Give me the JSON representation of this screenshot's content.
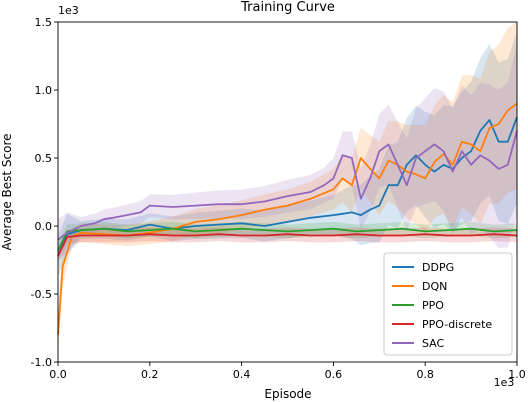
{
  "chart_data": {
    "type": "line",
    "title": "Training Curve",
    "xlabel": "Episode",
    "ylabel": "Average Best Score",
    "x_multiplier_label": "1e3",
    "y_multiplier_label": "1e3",
    "xlim": [
      0,
      1.0
    ],
    "ylim": [
      -1.0,
      1.5
    ],
    "x_ticks": [
      0.0,
      0.2,
      0.4,
      0.6,
      0.8,
      1.0
    ],
    "x_tick_labels": [
      "0.0",
      "0.2",
      "0.4",
      "0.6",
      "0.8",
      "1.0"
    ],
    "y_ticks": [
      -1.0,
      -0.5,
      0.0,
      0.5,
      1.0,
      1.5
    ],
    "y_tick_labels": [
      "-1.0",
      "-0.5",
      "0.0",
      "0.5",
      "1.0",
      "1.5"
    ],
    "grid": false,
    "legend_position": "lower-right",
    "series": [
      {
        "name": "DDPG",
        "color": "#1f77b4",
        "x": [
          0.0,
          0.02,
          0.05,
          0.1,
          0.15,
          0.2,
          0.25,
          0.3,
          0.35,
          0.4,
          0.45,
          0.5,
          0.55,
          0.6,
          0.62,
          0.64,
          0.66,
          0.68,
          0.7,
          0.72,
          0.74,
          0.76,
          0.78,
          0.8,
          0.82,
          0.84,
          0.86,
          0.88,
          0.9,
          0.92,
          0.94,
          0.96,
          0.98,
          1.0
        ],
        "y": [
          -0.22,
          -0.06,
          -0.03,
          -0.02,
          -0.03,
          0.01,
          -0.02,
          0.0,
          0.01,
          0.02,
          0.0,
          0.03,
          0.06,
          0.08,
          0.09,
          0.1,
          0.08,
          0.12,
          0.15,
          0.3,
          0.3,
          0.45,
          0.52,
          0.45,
          0.4,
          0.45,
          0.42,
          0.5,
          0.55,
          0.7,
          0.78,
          0.62,
          0.62,
          0.8
        ]
      },
      {
        "name": "DQN",
        "color": "#ff7f0e",
        "x": [
          0.0,
          0.01,
          0.03,
          0.05,
          0.1,
          0.15,
          0.2,
          0.25,
          0.3,
          0.35,
          0.4,
          0.45,
          0.5,
          0.55,
          0.6,
          0.62,
          0.64,
          0.66,
          0.68,
          0.7,
          0.72,
          0.74,
          0.76,
          0.78,
          0.8,
          0.82,
          0.84,
          0.86,
          0.88,
          0.9,
          0.92,
          0.94,
          0.96,
          0.98,
          1.0
        ],
        "y": [
          -0.8,
          -0.3,
          -0.08,
          -0.05,
          -0.06,
          -0.07,
          -0.05,
          -0.02,
          0.03,
          0.05,
          0.08,
          0.12,
          0.15,
          0.2,
          0.27,
          0.35,
          0.3,
          0.5,
          0.42,
          0.35,
          0.48,
          0.45,
          0.4,
          0.38,
          0.35,
          0.47,
          0.53,
          0.45,
          0.62,
          0.6,
          0.55,
          0.72,
          0.75,
          0.85,
          0.9
        ]
      },
      {
        "name": "PPO",
        "color": "#2ca02c",
        "x": [
          0.0,
          0.02,
          0.05,
          0.1,
          0.15,
          0.2,
          0.25,
          0.3,
          0.35,
          0.4,
          0.45,
          0.5,
          0.55,
          0.6,
          0.65,
          0.7,
          0.75,
          0.8,
          0.85,
          0.9,
          0.95,
          1.0
        ],
        "y": [
          -0.18,
          -0.04,
          -0.03,
          -0.02,
          -0.04,
          -0.03,
          -0.02,
          -0.04,
          -0.03,
          -0.02,
          -0.03,
          -0.04,
          -0.03,
          -0.02,
          -0.04,
          -0.03,
          -0.02,
          -0.04,
          -0.03,
          -0.02,
          -0.04,
          -0.03
        ]
      },
      {
        "name": "PPO-discrete",
        "color": "#d62728",
        "x": [
          0.0,
          0.02,
          0.05,
          0.1,
          0.15,
          0.2,
          0.25,
          0.3,
          0.35,
          0.4,
          0.45,
          0.5,
          0.55,
          0.6,
          0.65,
          0.7,
          0.75,
          0.8,
          0.85,
          0.9,
          0.95,
          1.0
        ],
        "y": [
          -0.22,
          -0.08,
          -0.07,
          -0.07,
          -0.07,
          -0.06,
          -0.07,
          -0.07,
          -0.06,
          -0.07,
          -0.07,
          -0.06,
          -0.07,
          -0.07,
          -0.06,
          -0.07,
          -0.07,
          -0.06,
          -0.07,
          -0.07,
          -0.06,
          -0.07
        ]
      },
      {
        "name": "SAC",
        "color": "#9467bd",
        "x": [
          0.0,
          0.02,
          0.05,
          0.08,
          0.1,
          0.12,
          0.15,
          0.18,
          0.2,
          0.25,
          0.3,
          0.35,
          0.4,
          0.45,
          0.5,
          0.55,
          0.58,
          0.6,
          0.62,
          0.64,
          0.66,
          0.68,
          0.7,
          0.72,
          0.74,
          0.76,
          0.78,
          0.8,
          0.82,
          0.84,
          0.86,
          0.88,
          0.9,
          0.92,
          0.94,
          0.96,
          0.98,
          1.0
        ],
        "y": [
          -0.1,
          -0.05,
          0.0,
          0.02,
          0.05,
          0.06,
          0.08,
          0.1,
          0.15,
          0.14,
          0.15,
          0.16,
          0.16,
          0.18,
          0.22,
          0.25,
          0.3,
          0.35,
          0.52,
          0.5,
          0.2,
          0.35,
          0.55,
          0.6,
          0.45,
          0.3,
          0.5,
          0.55,
          0.6,
          0.55,
          0.4,
          0.55,
          0.45,
          0.52,
          0.48,
          0.42,
          0.45,
          0.7
        ]
      }
    ]
  }
}
